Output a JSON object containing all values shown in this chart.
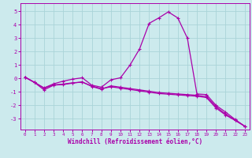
{
  "xlabel": "Windchill (Refroidissement éolien,°C)",
  "background_color": "#cceaed",
  "grid_color": "#aad4d8",
  "line_color": "#aa00aa",
  "xlim": [
    -0.5,
    23.5
  ],
  "ylim": [
    -3.8,
    5.6
  ],
  "yticks": [
    -3,
    -2,
    -1,
    0,
    1,
    2,
    3,
    4,
    5
  ],
  "xticks": [
    0,
    1,
    2,
    3,
    4,
    5,
    6,
    7,
    8,
    9,
    10,
    11,
    12,
    13,
    14,
    15,
    16,
    17,
    18,
    19,
    20,
    21,
    22,
    23
  ],
  "line1_x": [
    0,
    1,
    2,
    3,
    4,
    5,
    6,
    7,
    8,
    9,
    10,
    11,
    12,
    13,
    14,
    15,
    16,
    17,
    18,
    19,
    20,
    21,
    22,
    23
  ],
  "line1_y": [
    0.1,
    -0.3,
    -0.7,
    -0.4,
    -0.2,
    -0.05,
    0.05,
    -0.5,
    -0.65,
    -0.1,
    0.05,
    1.0,
    2.2,
    4.1,
    4.5,
    4.95,
    4.5,
    3.0,
    -1.15,
    -1.2,
    -2.0,
    -2.5,
    -3.05,
    -3.55
  ],
  "line2_x": [
    0,
    1,
    2,
    3,
    4,
    5,
    6,
    7,
    8,
    9,
    10,
    11,
    12,
    13,
    14,
    15,
    16,
    17,
    18,
    19,
    20,
    21,
    22,
    23
  ],
  "line2_y": [
    0.1,
    -0.3,
    -0.85,
    -0.5,
    -0.45,
    -0.35,
    -0.25,
    -0.6,
    -0.8,
    -0.55,
    -0.65,
    -0.75,
    -0.85,
    -0.95,
    -1.05,
    -1.1,
    -1.15,
    -1.2,
    -1.25,
    -1.35,
    -2.1,
    -2.65,
    -3.1,
    -3.55
  ],
  "line3_x": [
    0,
    1,
    2,
    3,
    4,
    5,
    6,
    7,
    8,
    9,
    10,
    11,
    12,
    13,
    14,
    15,
    16,
    17,
    18,
    19,
    20,
    21,
    22,
    23
  ],
  "line3_y": [
    0.1,
    -0.28,
    -0.72,
    -0.48,
    -0.42,
    -0.32,
    -0.28,
    -0.56,
    -0.76,
    -0.62,
    -0.72,
    -0.82,
    -0.92,
    -1.02,
    -1.12,
    -1.17,
    -1.22,
    -1.27,
    -1.32,
    -1.42,
    -2.2,
    -2.72,
    -3.12,
    -3.55
  ]
}
